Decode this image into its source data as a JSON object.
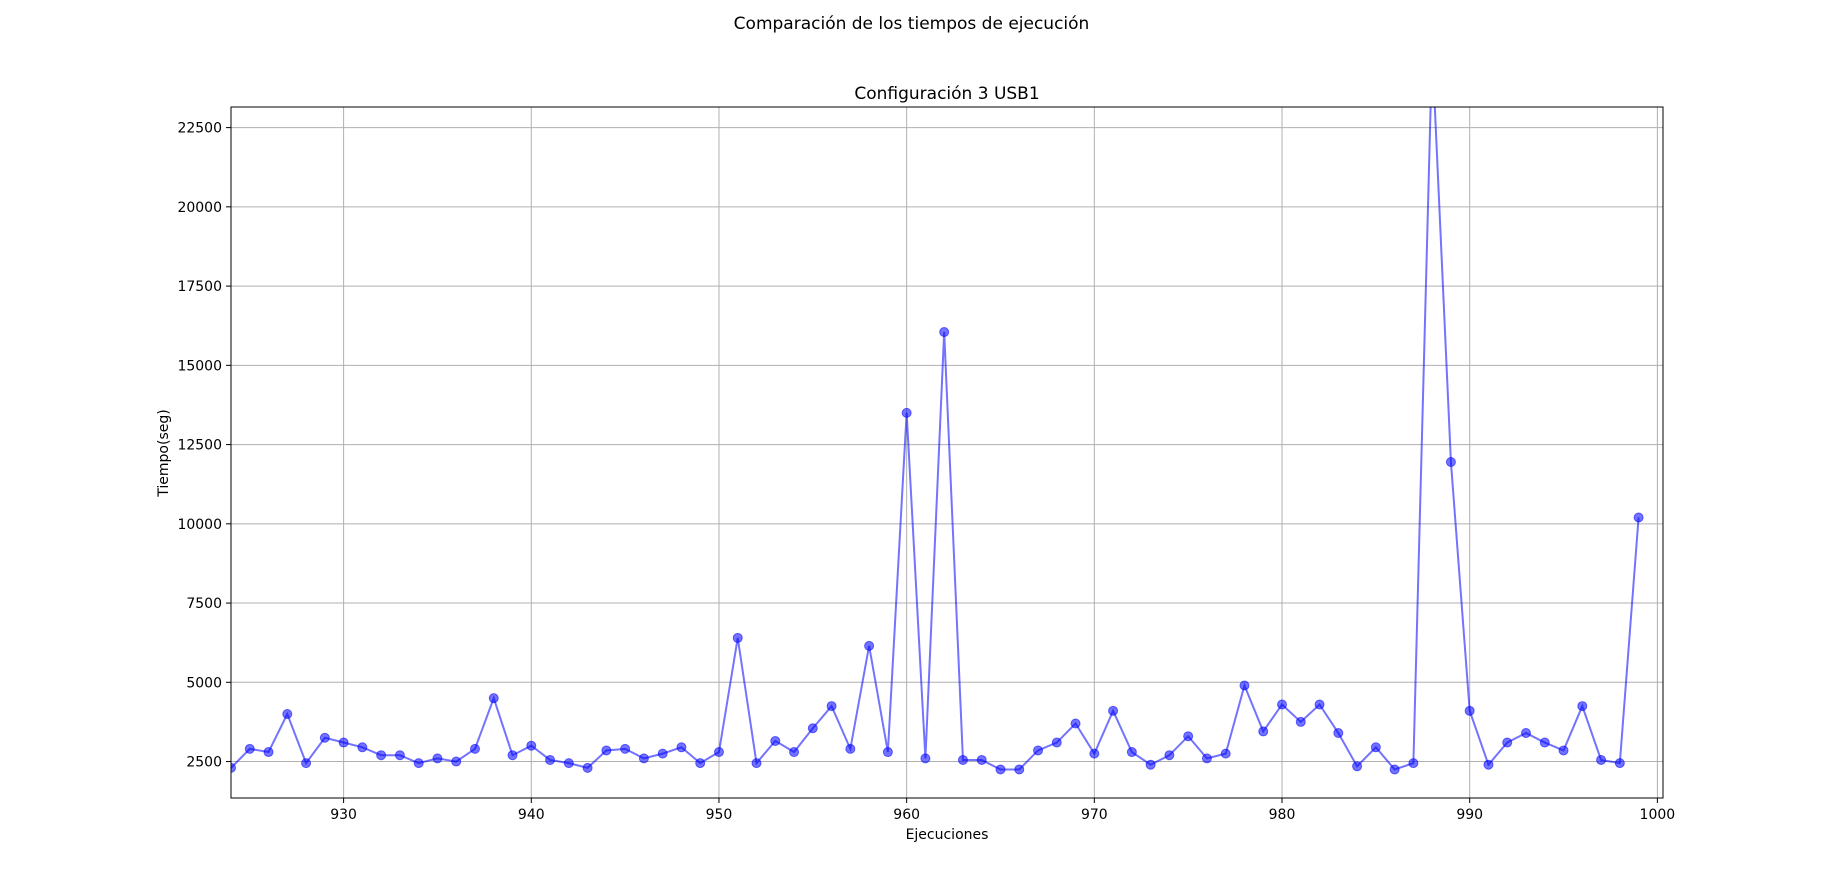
{
  "figure": {
    "suptitle": "Comparación de los tiempos de ejecución"
  },
  "colors": {
    "series": "#0000ff",
    "grid": "#b0b0b0",
    "axes": "#000000"
  },
  "chart_data": {
    "type": "line",
    "title": "Configuración 3 USB1",
    "xlabel": "Ejecuciones",
    "ylabel": "Tiempo(seg)",
    "xlim": [
      924,
      1000.3
    ],
    "ylim": [
      1350,
      23150
    ],
    "xticks": [
      930,
      940,
      950,
      960,
      970,
      980,
      990,
      1000
    ],
    "yticks": [
      2500,
      5000,
      7500,
      10000,
      12500,
      15000,
      17500,
      20000,
      22500
    ],
    "grid": true,
    "markers": "circle",
    "series": [
      {
        "x": [
          924,
          925,
          926,
          927,
          928,
          929,
          930,
          931,
          932,
          933,
          934,
          935,
          936,
          937,
          938,
          939,
          940,
          941,
          942,
          943,
          944,
          945,
          946,
          947,
          948,
          949,
          950,
          951,
          952,
          953,
          954,
          955,
          956,
          957,
          958,
          959,
          960,
          961,
          962,
          963,
          964,
          965,
          966,
          967,
          968,
          969,
          970,
          971,
          972,
          973,
          974,
          975,
          976,
          977,
          978,
          979,
          980,
          981,
          982,
          983,
          984,
          985,
          986,
          987,
          988,
          989,
          990,
          991,
          992,
          993,
          994,
          995,
          996,
          997,
          998,
          999
        ],
        "values": [
          2300,
          2900,
          2800,
          4000,
          2450,
          3250,
          3100,
          2950,
          2700,
          2700,
          2450,
          2600,
          2500,
          2900,
          4500,
          2700,
          3000,
          2550,
          2450,
          2300,
          2850,
          2900,
          2600,
          2750,
          2950,
          2450,
          2800,
          6400,
          2450,
          3150,
          2800,
          3550,
          4250,
          2900,
          6150,
          2800,
          13500,
          2600,
          16050,
          2550,
          2550,
          2250,
          2250,
          2850,
          3100,
          3700,
          2750,
          4100,
          2800,
          2400,
          2700,
          3300,
          2600,
          2750,
          4900,
          3450,
          4300,
          3750,
          4300,
          3400,
          2350,
          2950,
          2250,
          2450,
          25000,
          11950,
          4100,
          2400,
          3100,
          3400,
          3100,
          2850,
          4250,
          2550,
          2450,
          10200
        ]
      }
    ]
  }
}
